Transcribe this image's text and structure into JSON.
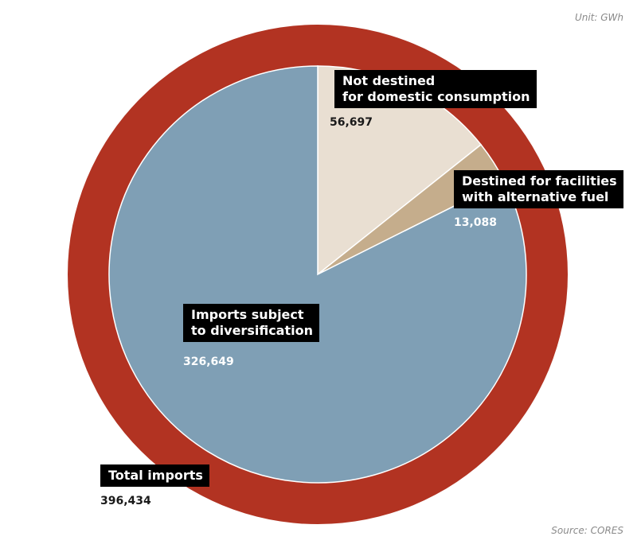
{
  "notes": {
    "unit": "Unit: GWh",
    "source": "Source: CORES"
  },
  "colors": {
    "outer_ring": "#B23322",
    "imports_subject": "#7F9FB5",
    "not_destined": "#E9DFD2",
    "alternative_fuel": "#C5AD8C",
    "label_bg": "#000000"
  },
  "chart_data": {
    "type": "pie",
    "title": "",
    "unit": "GWh",
    "total": {
      "label": "Total imports",
      "value": 396434,
      "value_text": "396,434"
    },
    "slices": [
      {
        "label": "Not destined\nfor domestic consumption",
        "value": 56697,
        "value_text": "56,697",
        "color": "#E9DFD2"
      },
      {
        "label": "Destined for facilities\nwith alternative fuel",
        "value": 13088,
        "value_text": "13,088",
        "color": "#C5AD8C"
      },
      {
        "label": "Imports subject\nto diversification",
        "value": 326649,
        "value_text": "326,649",
        "color": "#7F9FB5"
      }
    ]
  }
}
